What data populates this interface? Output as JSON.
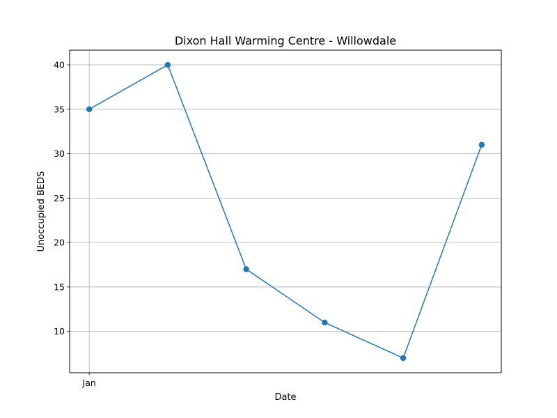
{
  "chart_data": {
    "type": "line",
    "title": "Dixon Hall Warming Centre - Willowdale",
    "xlabel": "Date",
    "ylabel": "Unoccupied BEDS",
    "x_tick_labels": [
      "Jan"
    ],
    "ylim": [
      5.35,
      41.65
    ],
    "yticks": [
      10,
      15,
      20,
      25,
      30,
      35,
      40
    ],
    "grid": true,
    "colors": {
      "series": "#1f77b4",
      "grid": "#b0b0b0",
      "axes": "#000000"
    },
    "series": [
      {
        "values": [
          35,
          40,
          17,
          11,
          7,
          31
        ]
      }
    ]
  }
}
